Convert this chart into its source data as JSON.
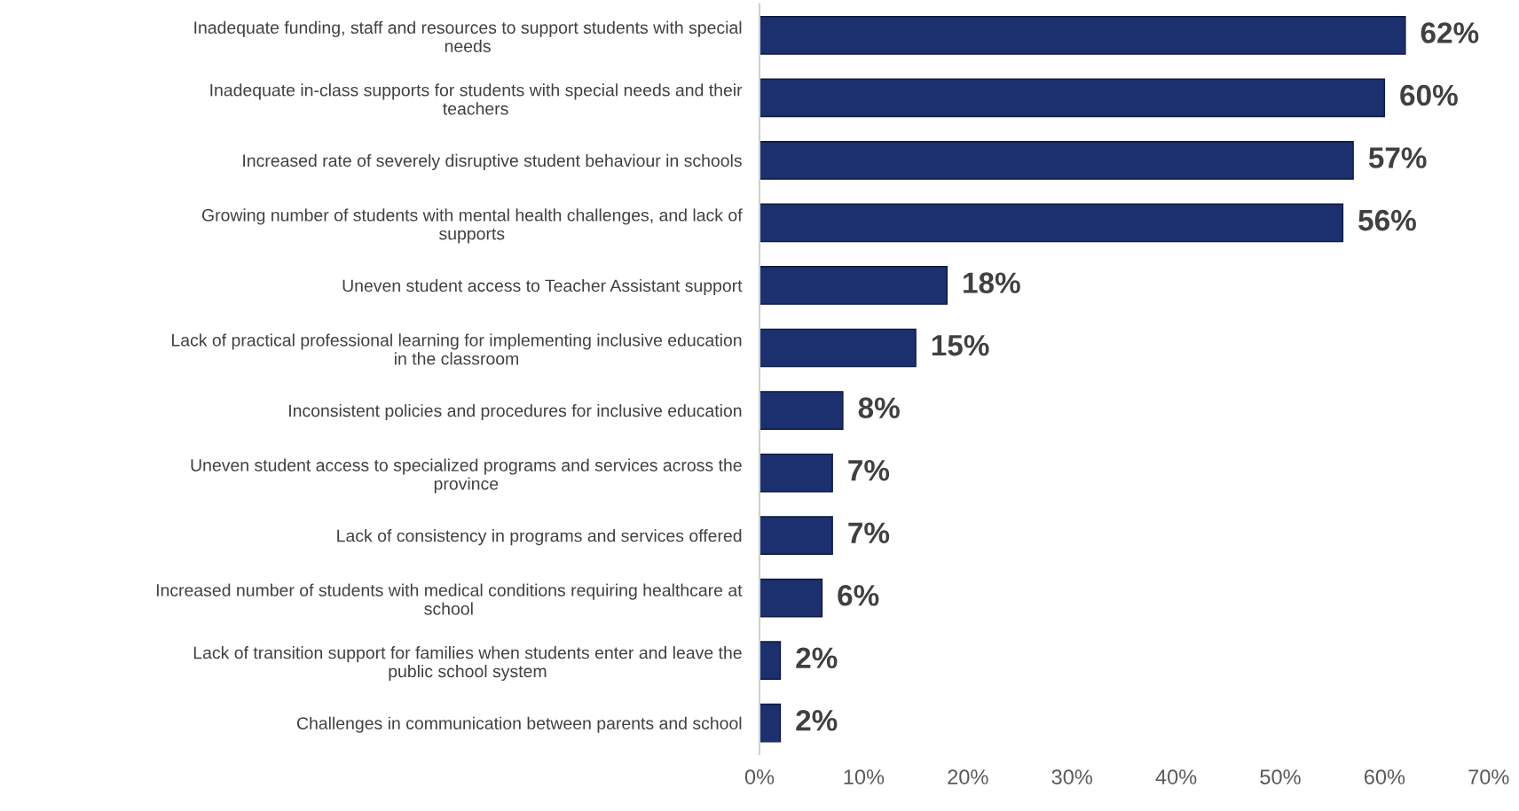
{
  "chart_data": {
    "type": "bar",
    "orientation": "horizontal",
    "categories": [
      "Inadequate funding, staff and resources to support students with special needs",
      "Inadequate in-class supports for students with special needs and their teachers",
      "Increased rate of severely disruptive student behaviour in schools",
      "Growing number of students with mental health challenges, and lack of supports",
      "Uneven student access to Teacher Assistant support",
      "Lack of practical professional learning for implementing inclusive education in the classroom",
      "Inconsistent policies and procedures for inclusive education",
      "Uneven student access to specialized programs and services across the province",
      "Lack of consistency in programs and services offered",
      "Increased number of students with medical conditions requiring healthcare at school",
      "Lack of transition support for families when students enter and leave the public school system",
      "Challenges in communication between parents and school"
    ],
    "values": [
      62,
      60,
      57,
      56,
      18,
      15,
      8,
      7,
      7,
      6,
      2,
      2
    ],
    "value_labels": [
      "62%",
      "60%",
      "57%",
      "56%",
      "18%",
      "15%",
      "8%",
      "7%",
      "7%",
      "6%",
      "2%",
      "2%"
    ],
    "color": "#1c2f6e",
    "xlim": [
      0,
      70
    ],
    "xticks": [
      {
        "value": 0,
        "label": "0%"
      },
      {
        "value": 10,
        "label": "10%"
      },
      {
        "value": 20,
        "label": "20%"
      },
      {
        "value": 30,
        "label": "30%"
      },
      {
        "value": 40,
        "label": "40%"
      },
      {
        "value": 50,
        "label": "50%"
      },
      {
        "value": 60,
        "label": "60%"
      },
      {
        "value": 70,
        "label": "70%"
      }
    ],
    "grid": false,
    "legend": false
  }
}
